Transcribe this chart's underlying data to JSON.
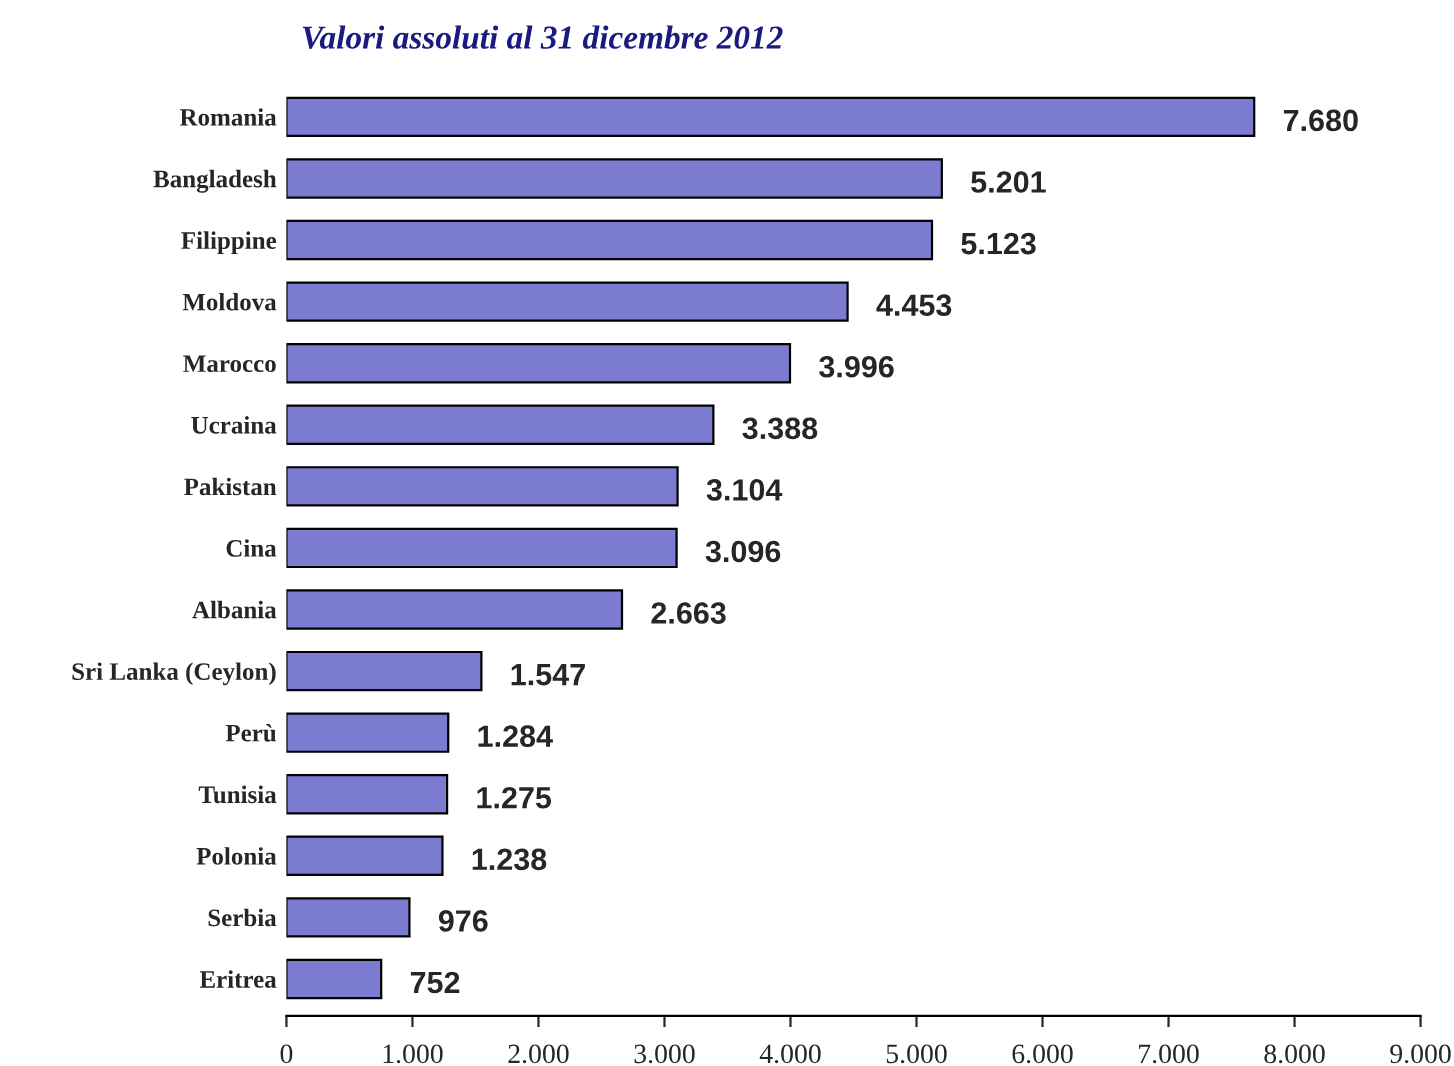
{
  "chart_data": {
    "type": "bar",
    "orientation": "horizontal",
    "title": "Valori assoluti al 31 dicembre 2012",
    "categories": [
      "Romania",
      "Bangladesh",
      "Filippine",
      "Moldova",
      "Marocco",
      "Ucraina",
      "Pakistan",
      "Cina",
      "Albania",
      "Sri Lanka (Ceylon)",
      "Perù",
      "Tunisia",
      "Polonia",
      "Serbia",
      "Eritrea"
    ],
    "values": [
      7680,
      5201,
      5123,
      4453,
      3996,
      3388,
      3104,
      3096,
      2663,
      1547,
      1284,
      1275,
      1238,
      976,
      752
    ],
    "value_labels": [
      "7.680",
      "5.201",
      "5.123",
      "4.453",
      "3.996",
      "3.388",
      "3.104",
      "3.096",
      "2.663",
      "1.547",
      "1.284",
      "1.275",
      "1.238",
      "976",
      "752"
    ],
    "color": "#7b7bd0",
    "xlim": [
      0,
      9000
    ],
    "xticks": [
      0,
      {
        "value": 1000,
        "label": "1.000"
      },
      {
        "value": 2000,
        "label": "2.000"
      },
      {
        "value": 3000,
        "label": "3.000"
      },
      {
        "value": 4000,
        "label": "4.000"
      },
      {
        "value": 5000,
        "label": "5.000"
      },
      {
        "value": 6000,
        "label": "6.000"
      },
      {
        "value": 7000,
        "label": "7.000"
      },
      {
        "value": 8000,
        "label": "8.000"
      },
      {
        "value": 9000,
        "label": "9.000"
      }
    ],
    "grid": false,
    "legend": false
  }
}
